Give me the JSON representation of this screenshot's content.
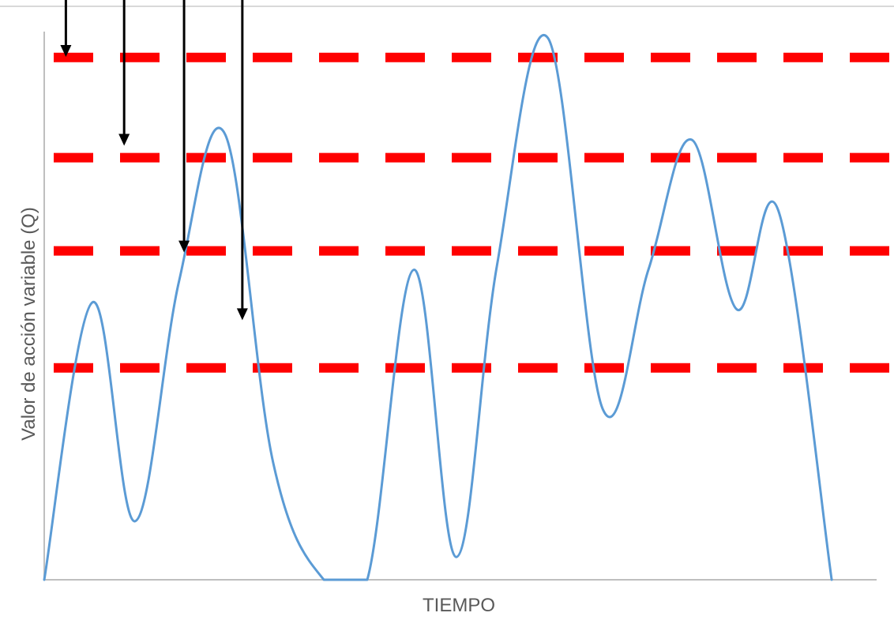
{
  "chart_data": {
    "type": "line",
    "title": "",
    "xlabel": "TIEMPO",
    "ylabel": "Valor de acción variable (Q)",
    "xlim": [
      0,
      100
    ],
    "ylim": [
      0,
      100
    ],
    "grid": false,
    "legend": "none",
    "series": [
      {
        "color": "#5b9bd5",
        "points": [
          [
            0,
            0
          ],
          [
            5.8,
            51.2
          ],
          [
            10.9,
            10.8
          ],
          [
            16.2,
            55.1
          ],
          [
            21.7,
            82.3
          ],
          [
            27.5,
            21.6
          ],
          [
            33.6,
            0
          ],
          [
            38.8,
            0
          ],
          [
            44.4,
            57.2
          ],
          [
            49.5,
            4.2
          ],
          [
            54.4,
            58.1
          ],
          [
            60.5,
            100
          ],
          [
            67.1,
            31.5
          ],
          [
            72.6,
            57.3
          ],
          [
            77.8,
            81.2
          ],
          [
            83.2,
            49.9
          ],
          [
            88.2,
            68.1
          ],
          [
            94.6,
            0
          ]
        ]
      }
    ],
    "thresholds": {
      "color": "#ff0000",
      "values": [
        39.1,
        60.7,
        77.9,
        96.4
      ]
    },
    "arrows": {
      "color": "#000000",
      "targets": [
        {
          "x": 2.6,
          "y": 96.5
        },
        {
          "x": 9.6,
          "y": 80.1
        },
        {
          "x": 16.8,
          "y": 60.4
        },
        {
          "x": 23.8,
          "y": 47.9
        }
      ]
    }
  }
}
